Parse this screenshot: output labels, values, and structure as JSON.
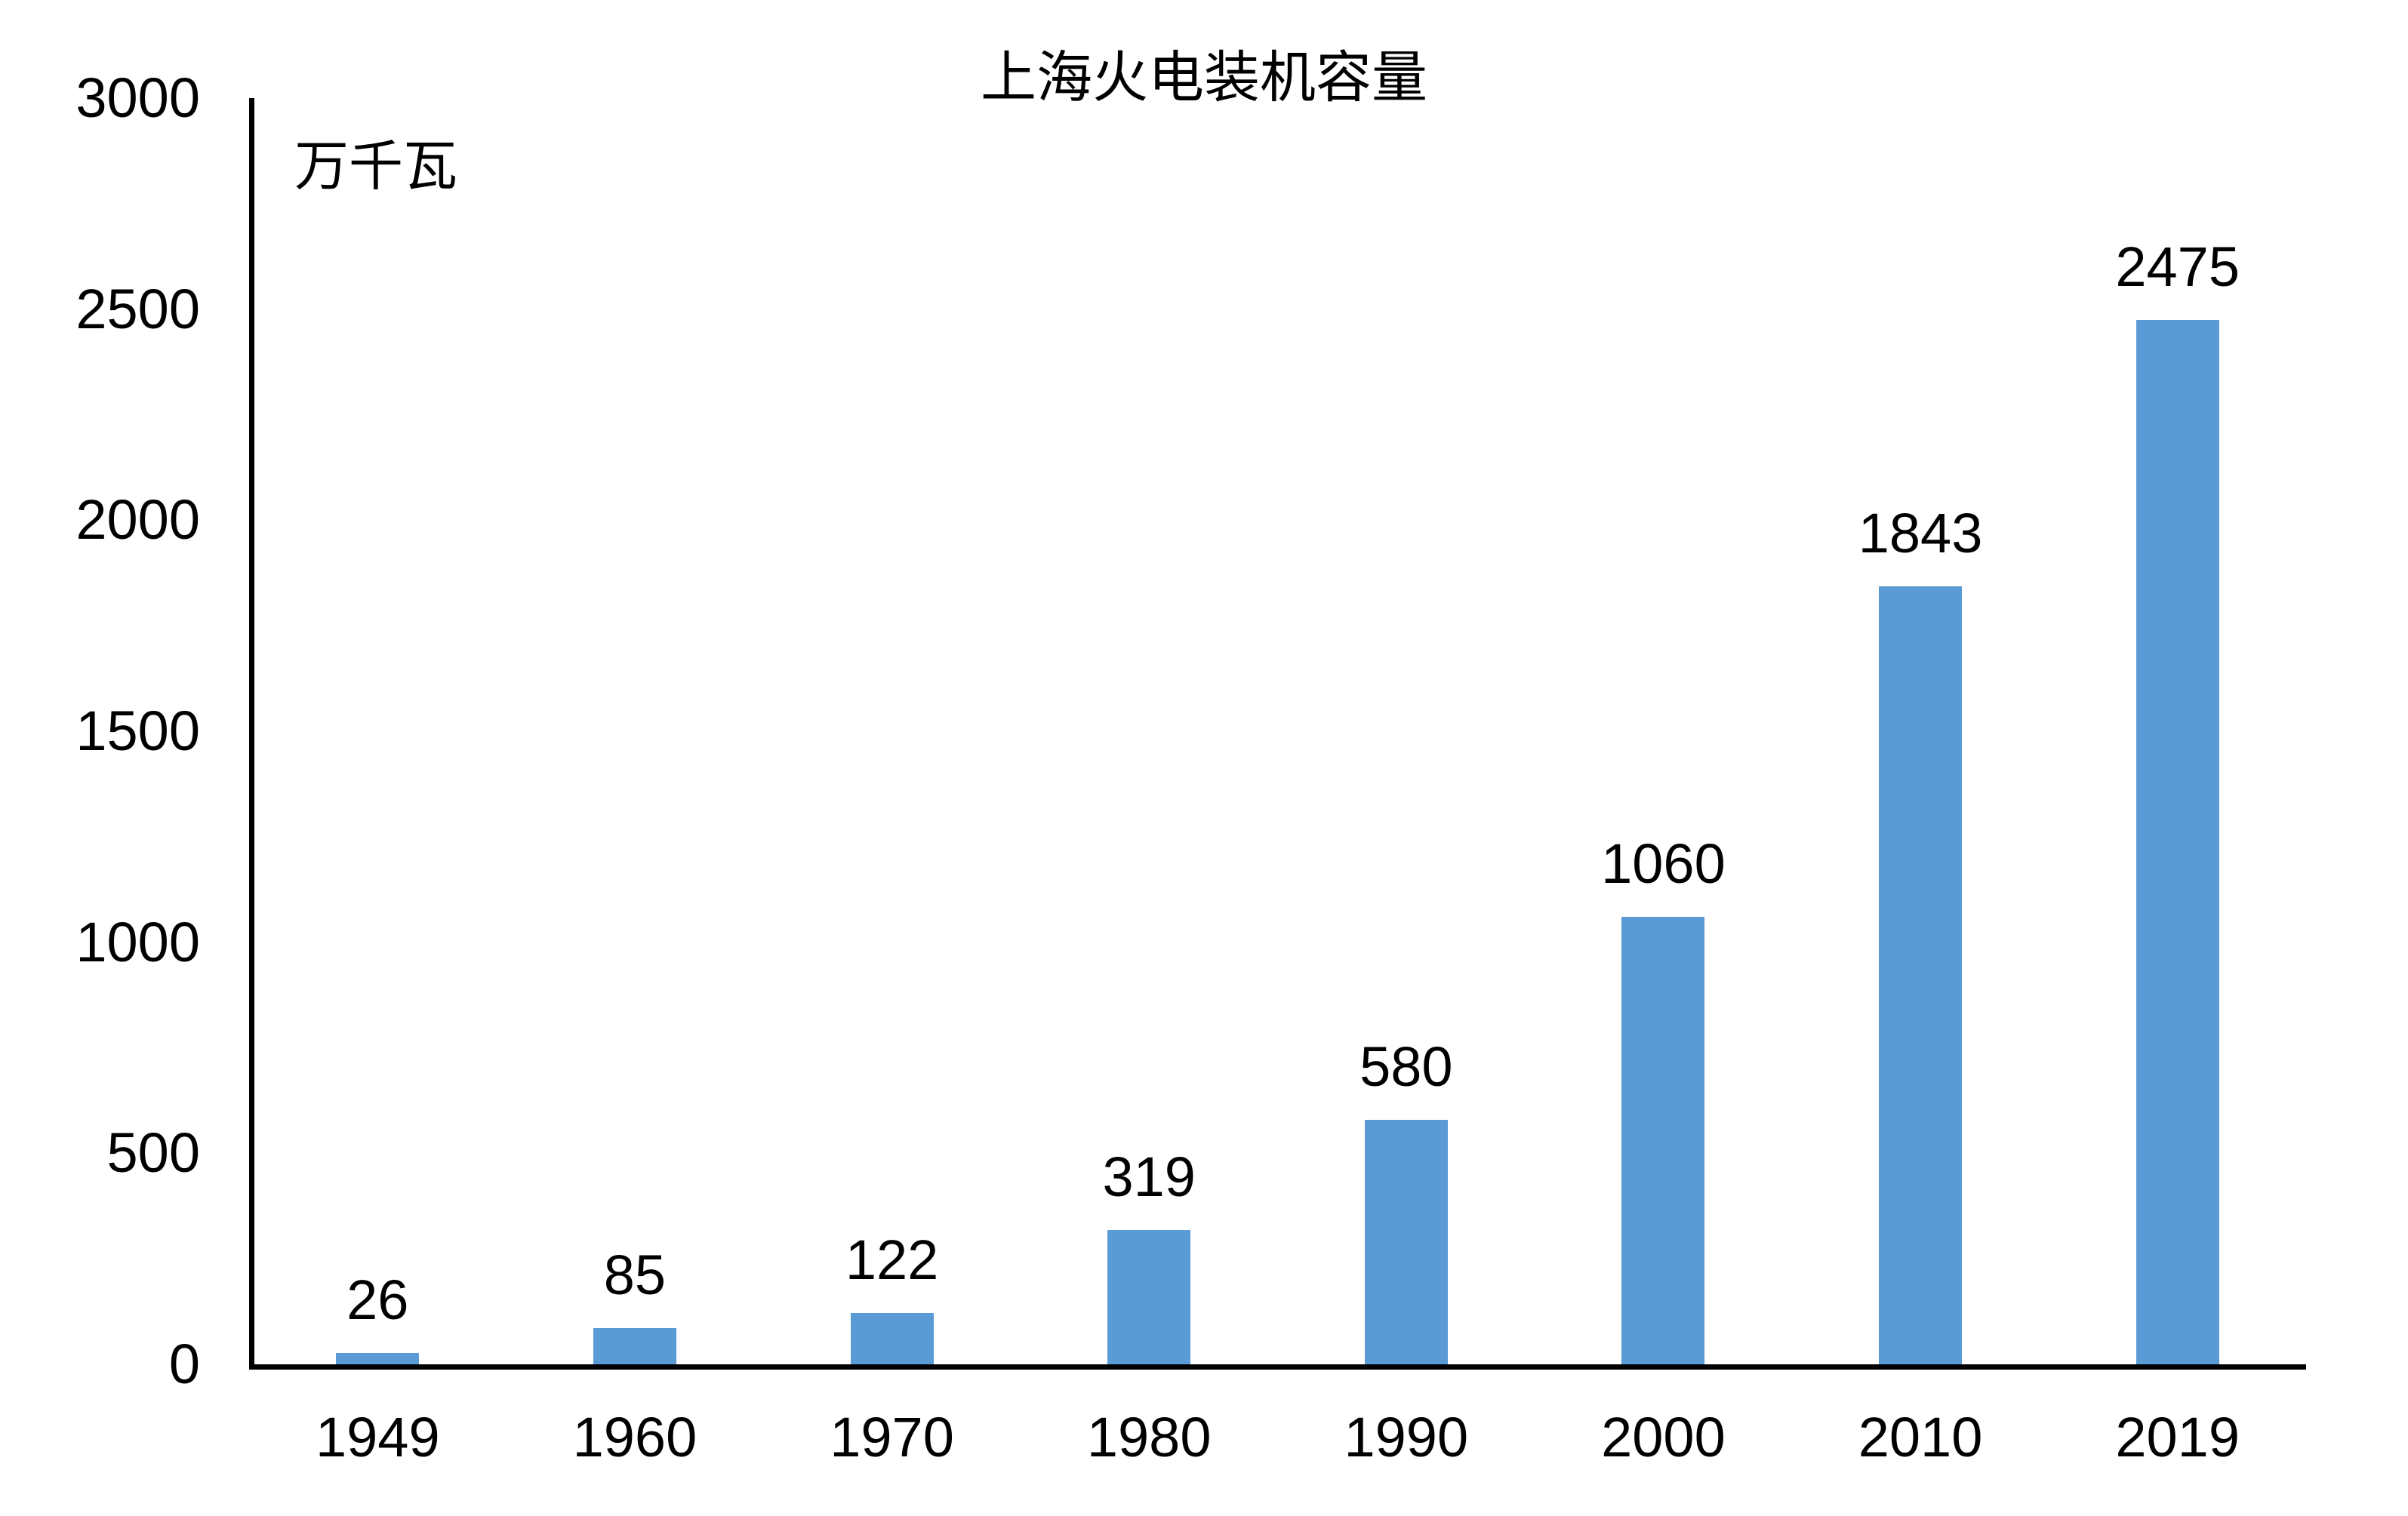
{
  "chart_data": {
    "type": "bar",
    "title": "上海火电装机容量",
    "ylabel_unit": "万千瓦",
    "categories": [
      "1949",
      "1960",
      "1970",
      "1980",
      "1990",
      "2000",
      "2010",
      "2019"
    ],
    "values": [
      26,
      85,
      122,
      319,
      580,
      1060,
      1843,
      2475
    ],
    "yticks": [
      3000,
      2500,
      2000,
      1500,
      1000,
      500,
      0
    ],
    "ylim": [
      0,
      3000
    ],
    "xlabel": "",
    "ylabel": "",
    "legend_position": "none",
    "grid": false,
    "data_labels": true,
    "bar_color": "#5B9BD5",
    "axis_color": "#000000",
    "text_color": "#000000",
    "background_color": "#FFFFFF"
  }
}
